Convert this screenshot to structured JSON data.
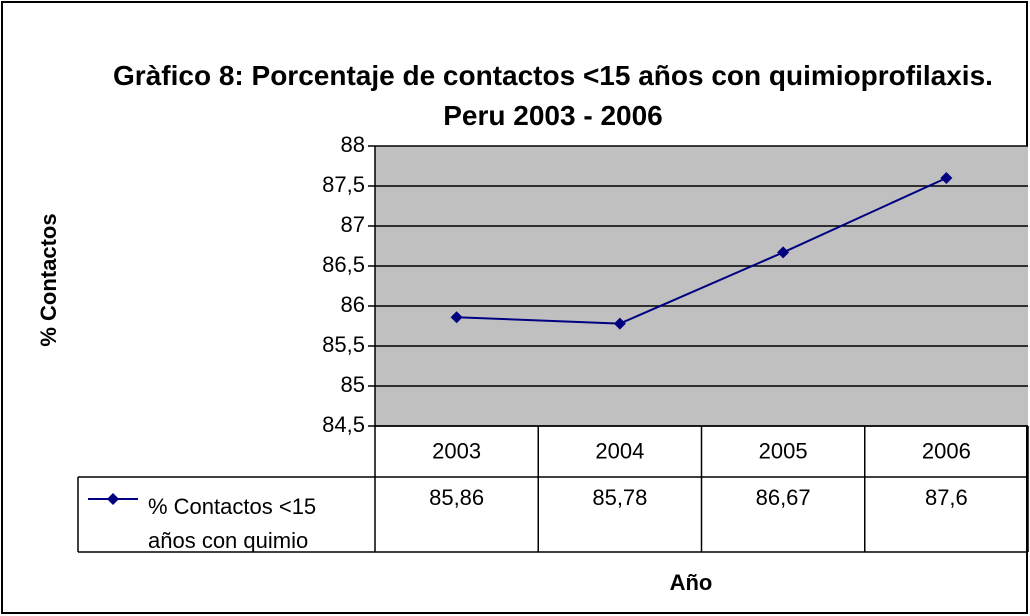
{
  "chart_data": {
    "type": "line",
    "title": "Gràfico 8: Porcentaje de contactos <15 años con quimioprofilaxis. Peru 2003 - 2006",
    "x_label": "Año",
    "y_label": "% Contactos",
    "categories": [
      "2003",
      "2004",
      "2005",
      "2006"
    ],
    "series": [
      {
        "name": "% Contactos <15 años con quimio",
        "color": "#000080",
        "values": [
          85.86,
          85.78,
          86.67,
          87.6
        ],
        "value_labels": [
          "85,86",
          "85,78",
          "86,67",
          "87,6"
        ]
      }
    ],
    "ylim": [
      84.5,
      88
    ],
    "yticks": [
      {
        "value": 84.5,
        "label": "84,5"
      },
      85,
      {
        "value": 85.5,
        "label": "85,5"
      },
      86,
      {
        "value": 86.5,
        "label": "86,5"
      },
      87,
      {
        "value": 87.5,
        "label": "87,5"
      },
      88
    ],
    "grid": true,
    "plot_background": "#c0c0c0"
  }
}
